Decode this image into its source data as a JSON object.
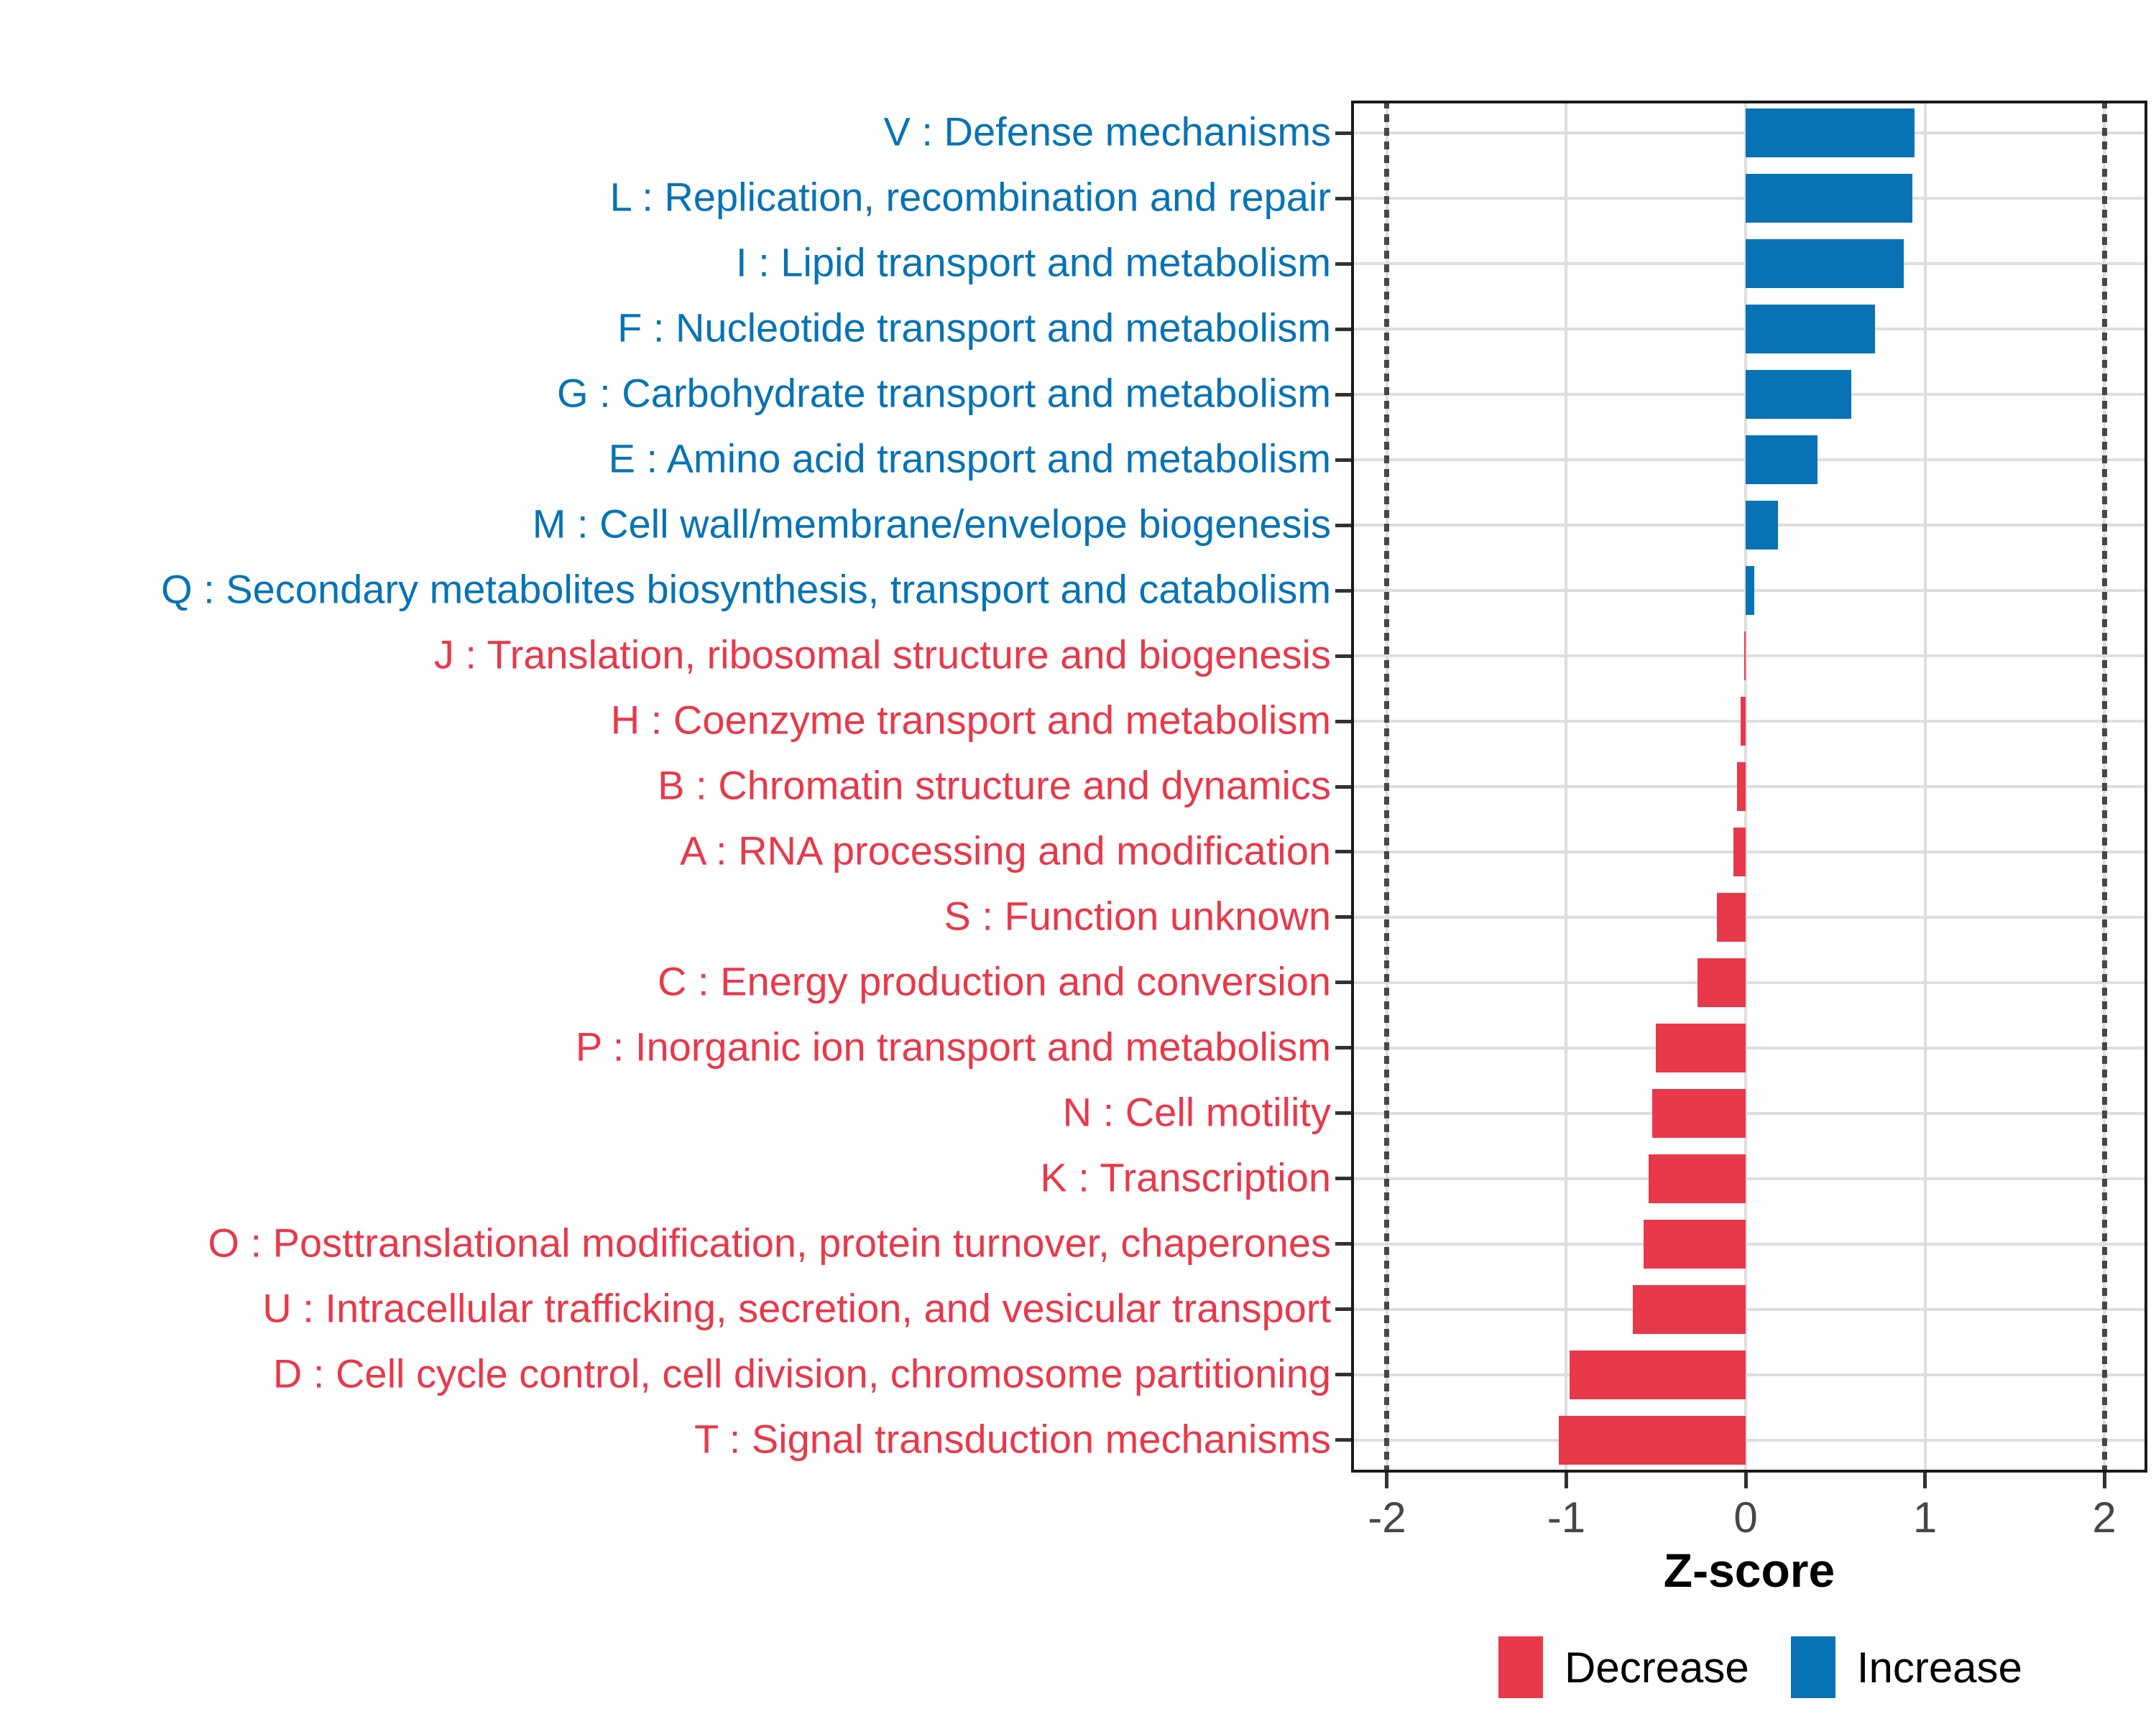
{
  "chart_data": {
    "type": "bar",
    "orientation": "horizontal",
    "title": "",
    "xlabel": "Z-score",
    "ylabel": "",
    "xticks": [
      -2,
      -1,
      0,
      1,
      2
    ],
    "xlim": [
      -2.2,
      2.24
    ],
    "reference_lines_dotted": [
      -2,
      2
    ],
    "grid": "on",
    "legend_position": "bottom-right",
    "colors": {
      "increase": "#0773b5",
      "decrease": "#e8394a",
      "gridline": "#dedede",
      "panel_border": "#1a1a1a",
      "axis_text": "#474747",
      "tick_mark": "#333333"
    },
    "bars": [
      {
        "label": "V : Defense mechanisms",
        "value": 0.94,
        "group": "increase"
      },
      {
        "label": "L : Replication, recombination and repair",
        "value": 0.93,
        "group": "increase"
      },
      {
        "label": "I : Lipid transport and metabolism",
        "value": 0.88,
        "group": "increase"
      },
      {
        "label": "F : Nucleotide transport and metabolism",
        "value": 0.72,
        "group": "increase"
      },
      {
        "label": "G : Carbohydrate transport and metabolism",
        "value": 0.59,
        "group": "increase"
      },
      {
        "label": "E : Amino acid transport and metabolism",
        "value": 0.4,
        "group": "increase"
      },
      {
        "label": "M : Cell wall/membrane/envelope biogenesis",
        "value": 0.18,
        "group": "increase"
      },
      {
        "label": "Q : Secondary metabolites biosynthesis, transport and catabolism",
        "value": 0.05,
        "group": "increase"
      },
      {
        "label": "J : Translation, ribosomal structure and biogenesis",
        "value": -0.01,
        "group": "decrease"
      },
      {
        "label": "H : Coenzyme transport and metabolism",
        "value": -0.03,
        "group": "decrease"
      },
      {
        "label": "B : Chromatin structure and dynamics",
        "value": -0.05,
        "group": "decrease"
      },
      {
        "label": "A : RNA processing and modification",
        "value": -0.07,
        "group": "decrease"
      },
      {
        "label": "S : Function unknown",
        "value": -0.16,
        "group": "decrease"
      },
      {
        "label": "C : Energy production and conversion",
        "value": -0.27,
        "group": "decrease"
      },
      {
        "label": "P : Inorganic ion transport and metabolism",
        "value": -0.5,
        "group": "decrease"
      },
      {
        "label": "N : Cell motility",
        "value": -0.52,
        "group": "decrease"
      },
      {
        "label": "K : Transcription",
        "value": -0.54,
        "group": "decrease"
      },
      {
        "label": "O : Posttranslational modification, protein turnover, chaperones",
        "value": -0.57,
        "group": "decrease"
      },
      {
        "label": "U : Intracellular trafficking, secretion, and vesicular transport",
        "value": -0.63,
        "group": "decrease"
      },
      {
        "label": "D : Cell cycle control, cell division, chromosome partitioning",
        "value": -0.98,
        "group": "decrease"
      },
      {
        "label": "T : Signal transduction mechanisms",
        "value": -1.04,
        "group": "decrease"
      }
    ]
  },
  "legend": {
    "items": [
      {
        "label": "Decrease",
        "group": "decrease"
      },
      {
        "label": "Increase",
        "group": "increase"
      }
    ]
  }
}
